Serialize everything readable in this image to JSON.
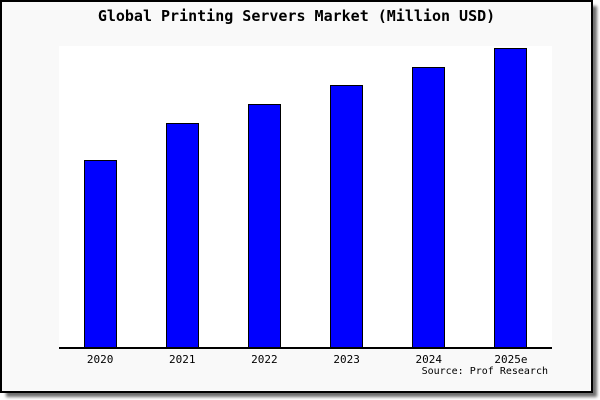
{
  "window": {
    "background": "#f9f9f9",
    "border_color": "#000000",
    "shadow_color": "#6e6e6e"
  },
  "chart_data": {
    "type": "bar",
    "title": "Global Printing Servers Market (Million USD)",
    "categories": [
      "2020",
      "2021",
      "2022",
      "2023",
      "2024",
      "2025e"
    ],
    "values": [
      62.5,
      75.0,
      81.3,
      87.6,
      93.8,
      100
    ],
    "value_note": "no y-axis ticks or data labels shown; values are relative bar heights with 2025e = 100",
    "xlabel": "",
    "ylabel": "",
    "ylim": [
      0,
      101
    ],
    "grid": false,
    "legend": null,
    "bar_color": "#0000ff",
    "bar_edge_color": "#000000",
    "plot_background": "#ffffff",
    "visible_spines": [
      "bottom"
    ]
  },
  "footer": {
    "source_label": "Source: Prof Research"
  }
}
